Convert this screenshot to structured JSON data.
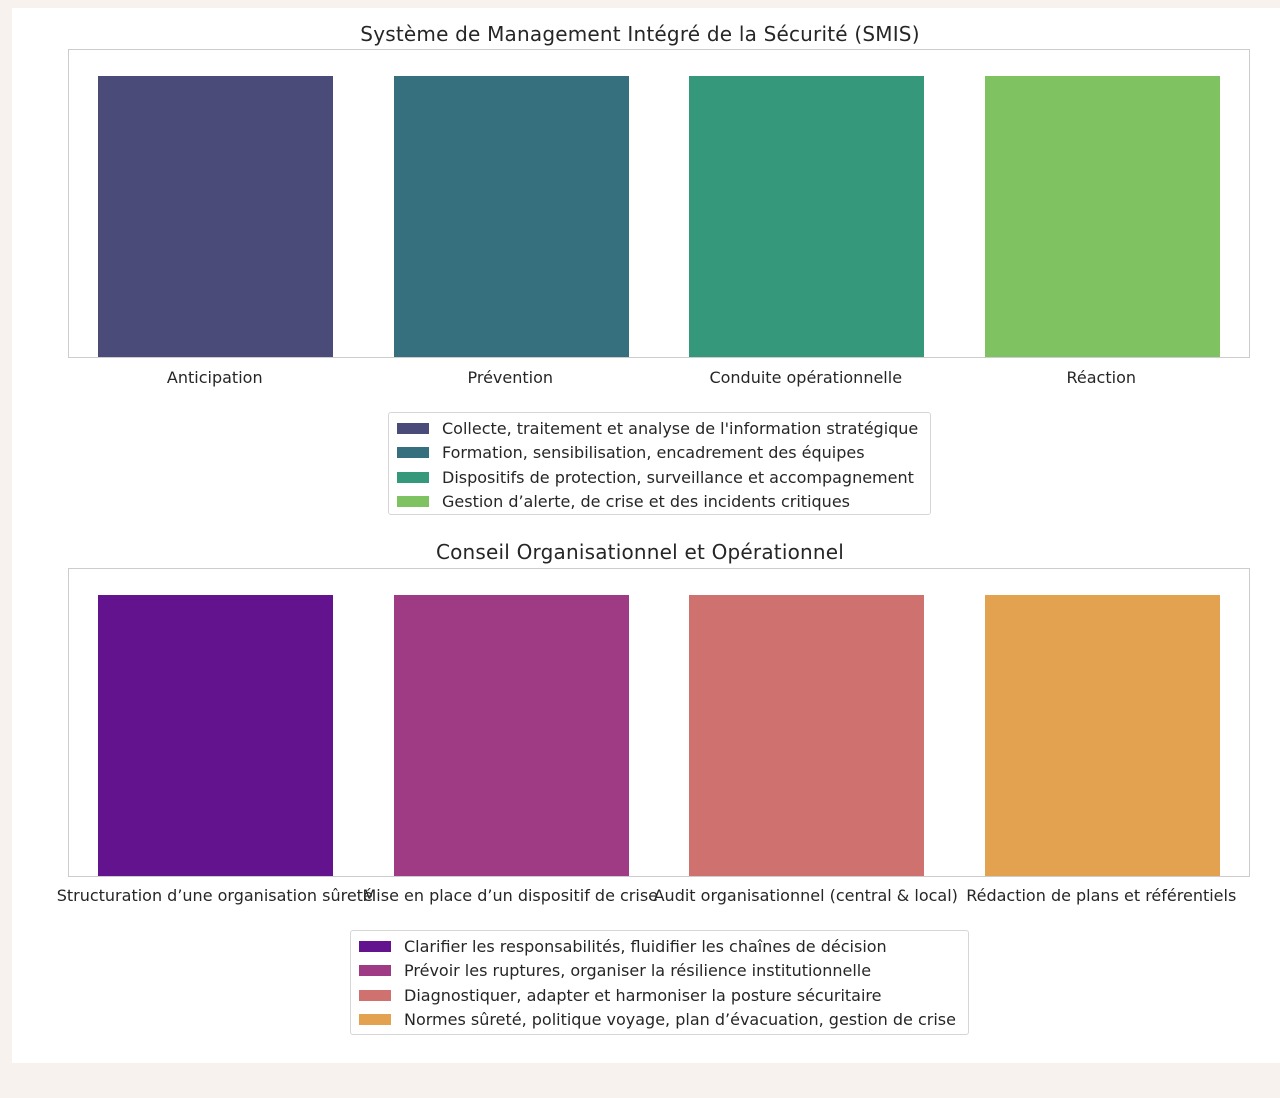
{
  "chart_data": [
    {
      "type": "bar",
      "title": "Système de Management Intégré de la Sécurité (SMIS)",
      "categories": [
        "Anticipation",
        "Prévention",
        "Conduite opérationnelle",
        "Réaction"
      ],
      "values": [
        1,
        1,
        1,
        1
      ],
      "ylim": [
        0,
        1.1
      ],
      "colors": [
        "#4a4b78",
        "#36707f",
        "#35987a",
        "#7ec262"
      ],
      "legend": [
        "Collecte, traitement et analyse de l'information stratégique",
        "Formation, sensibilisation, encadrement des équipes",
        "Dispositifs de protection, surveillance et accompagnement",
        "Gestion d’alerte, de crise et des incidents critiques"
      ],
      "legend_position": "lower center",
      "grid": false
    },
    {
      "type": "bar",
      "title": "Conseil Organisationnel et Opérationnel",
      "categories": [
        "Structuration d’une organisation sûreté",
        "Mise en place d’un dispositif de crise",
        "Audit organisationnel (central & local)",
        "Rédaction de plans et référentiels"
      ],
      "values": [
        1,
        1,
        1,
        1
      ],
      "ylim": [
        0,
        1.1
      ],
      "colors": [
        "#64138f",
        "#9e3b84",
        "#cf716f",
        "#e3a24f"
      ],
      "legend": [
        "Clarifier les responsabilités, fluidifier les chaînes de décision",
        "Prévoir les ruptures, organiser la résilience institutionnelle",
        "Diagnostiquer, adapter et harmoniser la posture sécuritaire",
        "Normes sûreté, politique voyage, plan d’évacuation, gestion de crise"
      ],
      "legend_position": "lower center",
      "grid": false
    }
  ]
}
